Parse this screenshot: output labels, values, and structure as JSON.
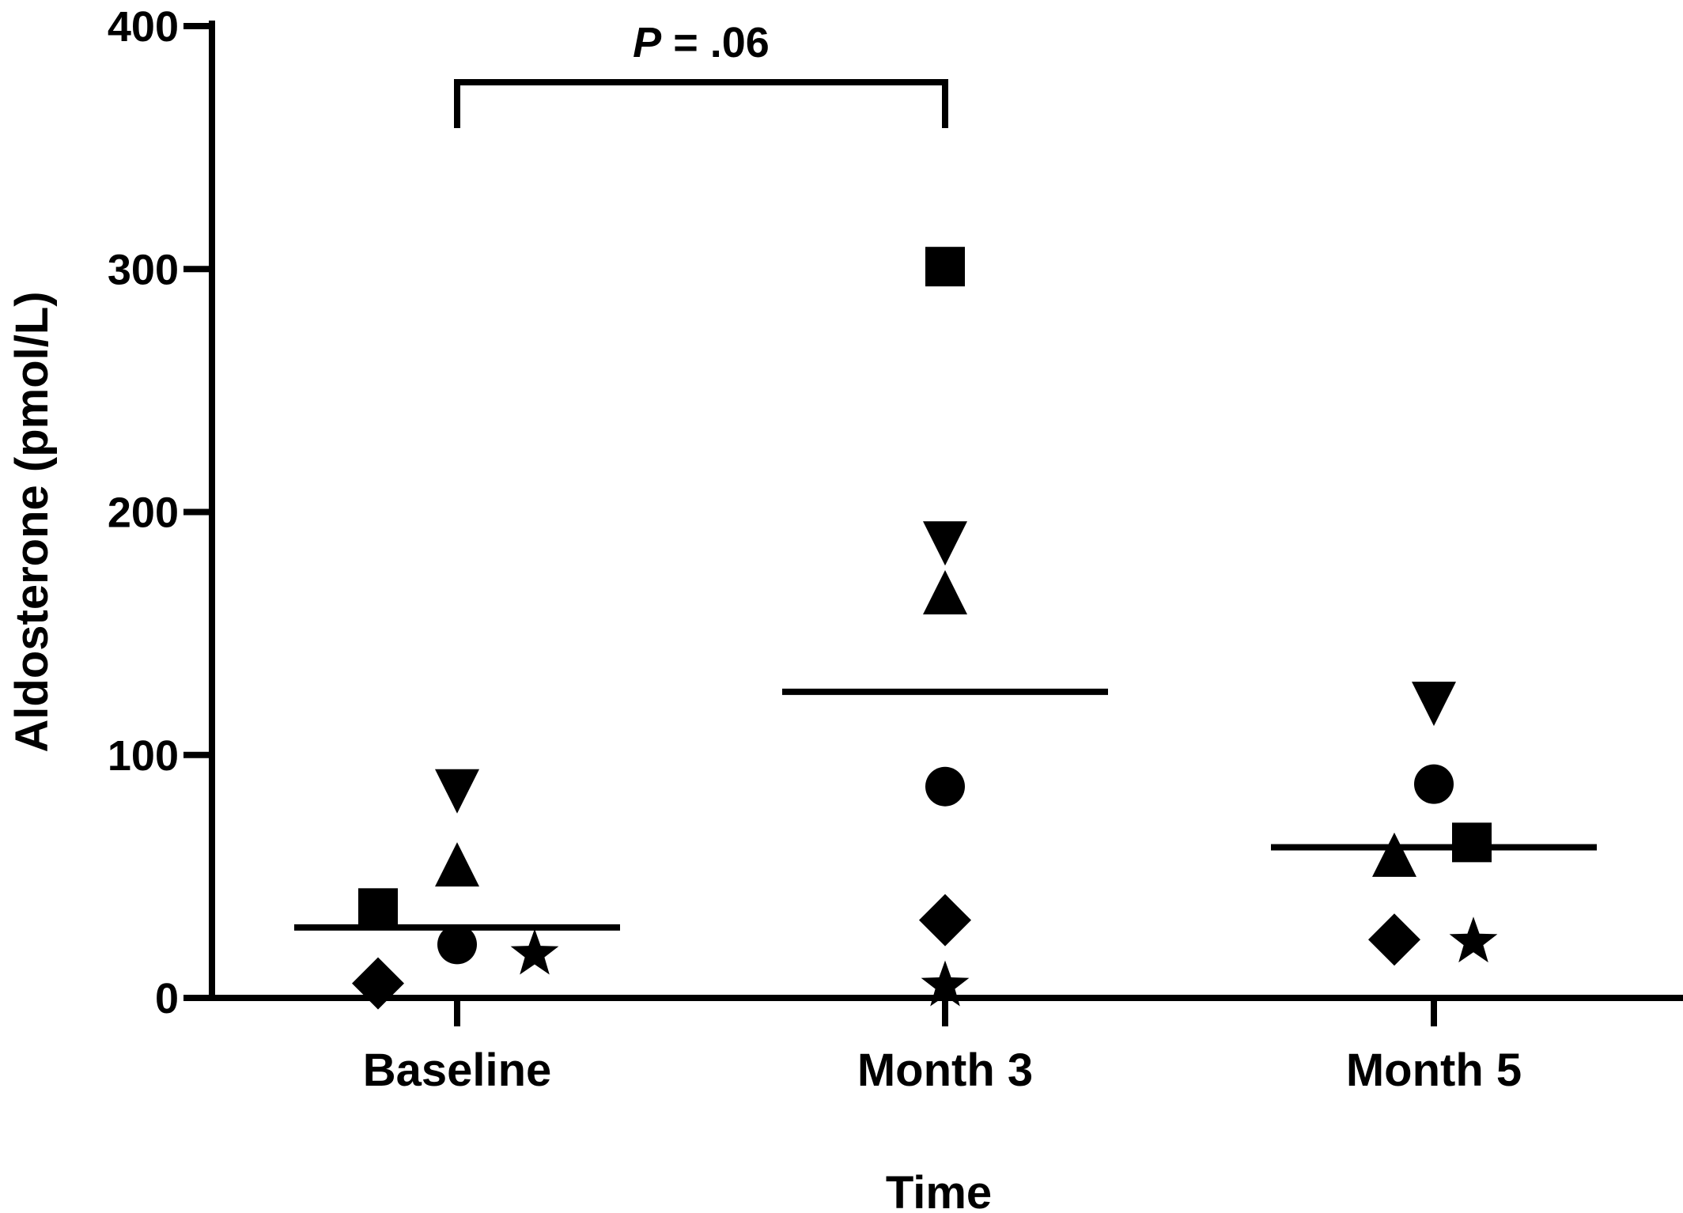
{
  "chart_data": {
    "type": "scatter",
    "xlabel": "Time",
    "ylabel": "Aldosterone (pmol/L)",
    "ylim": [
      0,
      400
    ],
    "y_ticks": [
      0,
      100,
      200,
      300,
      400
    ],
    "categories": [
      "Baseline",
      "Month 3",
      "Month 5"
    ],
    "series": [
      {
        "marker": "square",
        "values": [
          37,
          301,
          64
        ]
      },
      {
        "marker": "triangle-up",
        "values": [
          53,
          165,
          57
        ]
      },
      {
        "marker": "triangle-down",
        "values": [
          87,
          189,
          123
        ]
      },
      {
        "marker": "circle",
        "values": [
          22,
          87,
          88
        ]
      },
      {
        "marker": "diamond",
        "values": [
          6,
          32,
          24
        ]
      },
      {
        "marker": "star",
        "values": [
          19,
          6,
          24
        ]
      }
    ],
    "means": [
      29,
      126,
      62
    ],
    "annotation": {
      "text_italic": "P",
      "text_rest": " = .06",
      "between": [
        "Baseline",
        "Month 3"
      ]
    },
    "grid": false,
    "marker_color": "#000000"
  }
}
